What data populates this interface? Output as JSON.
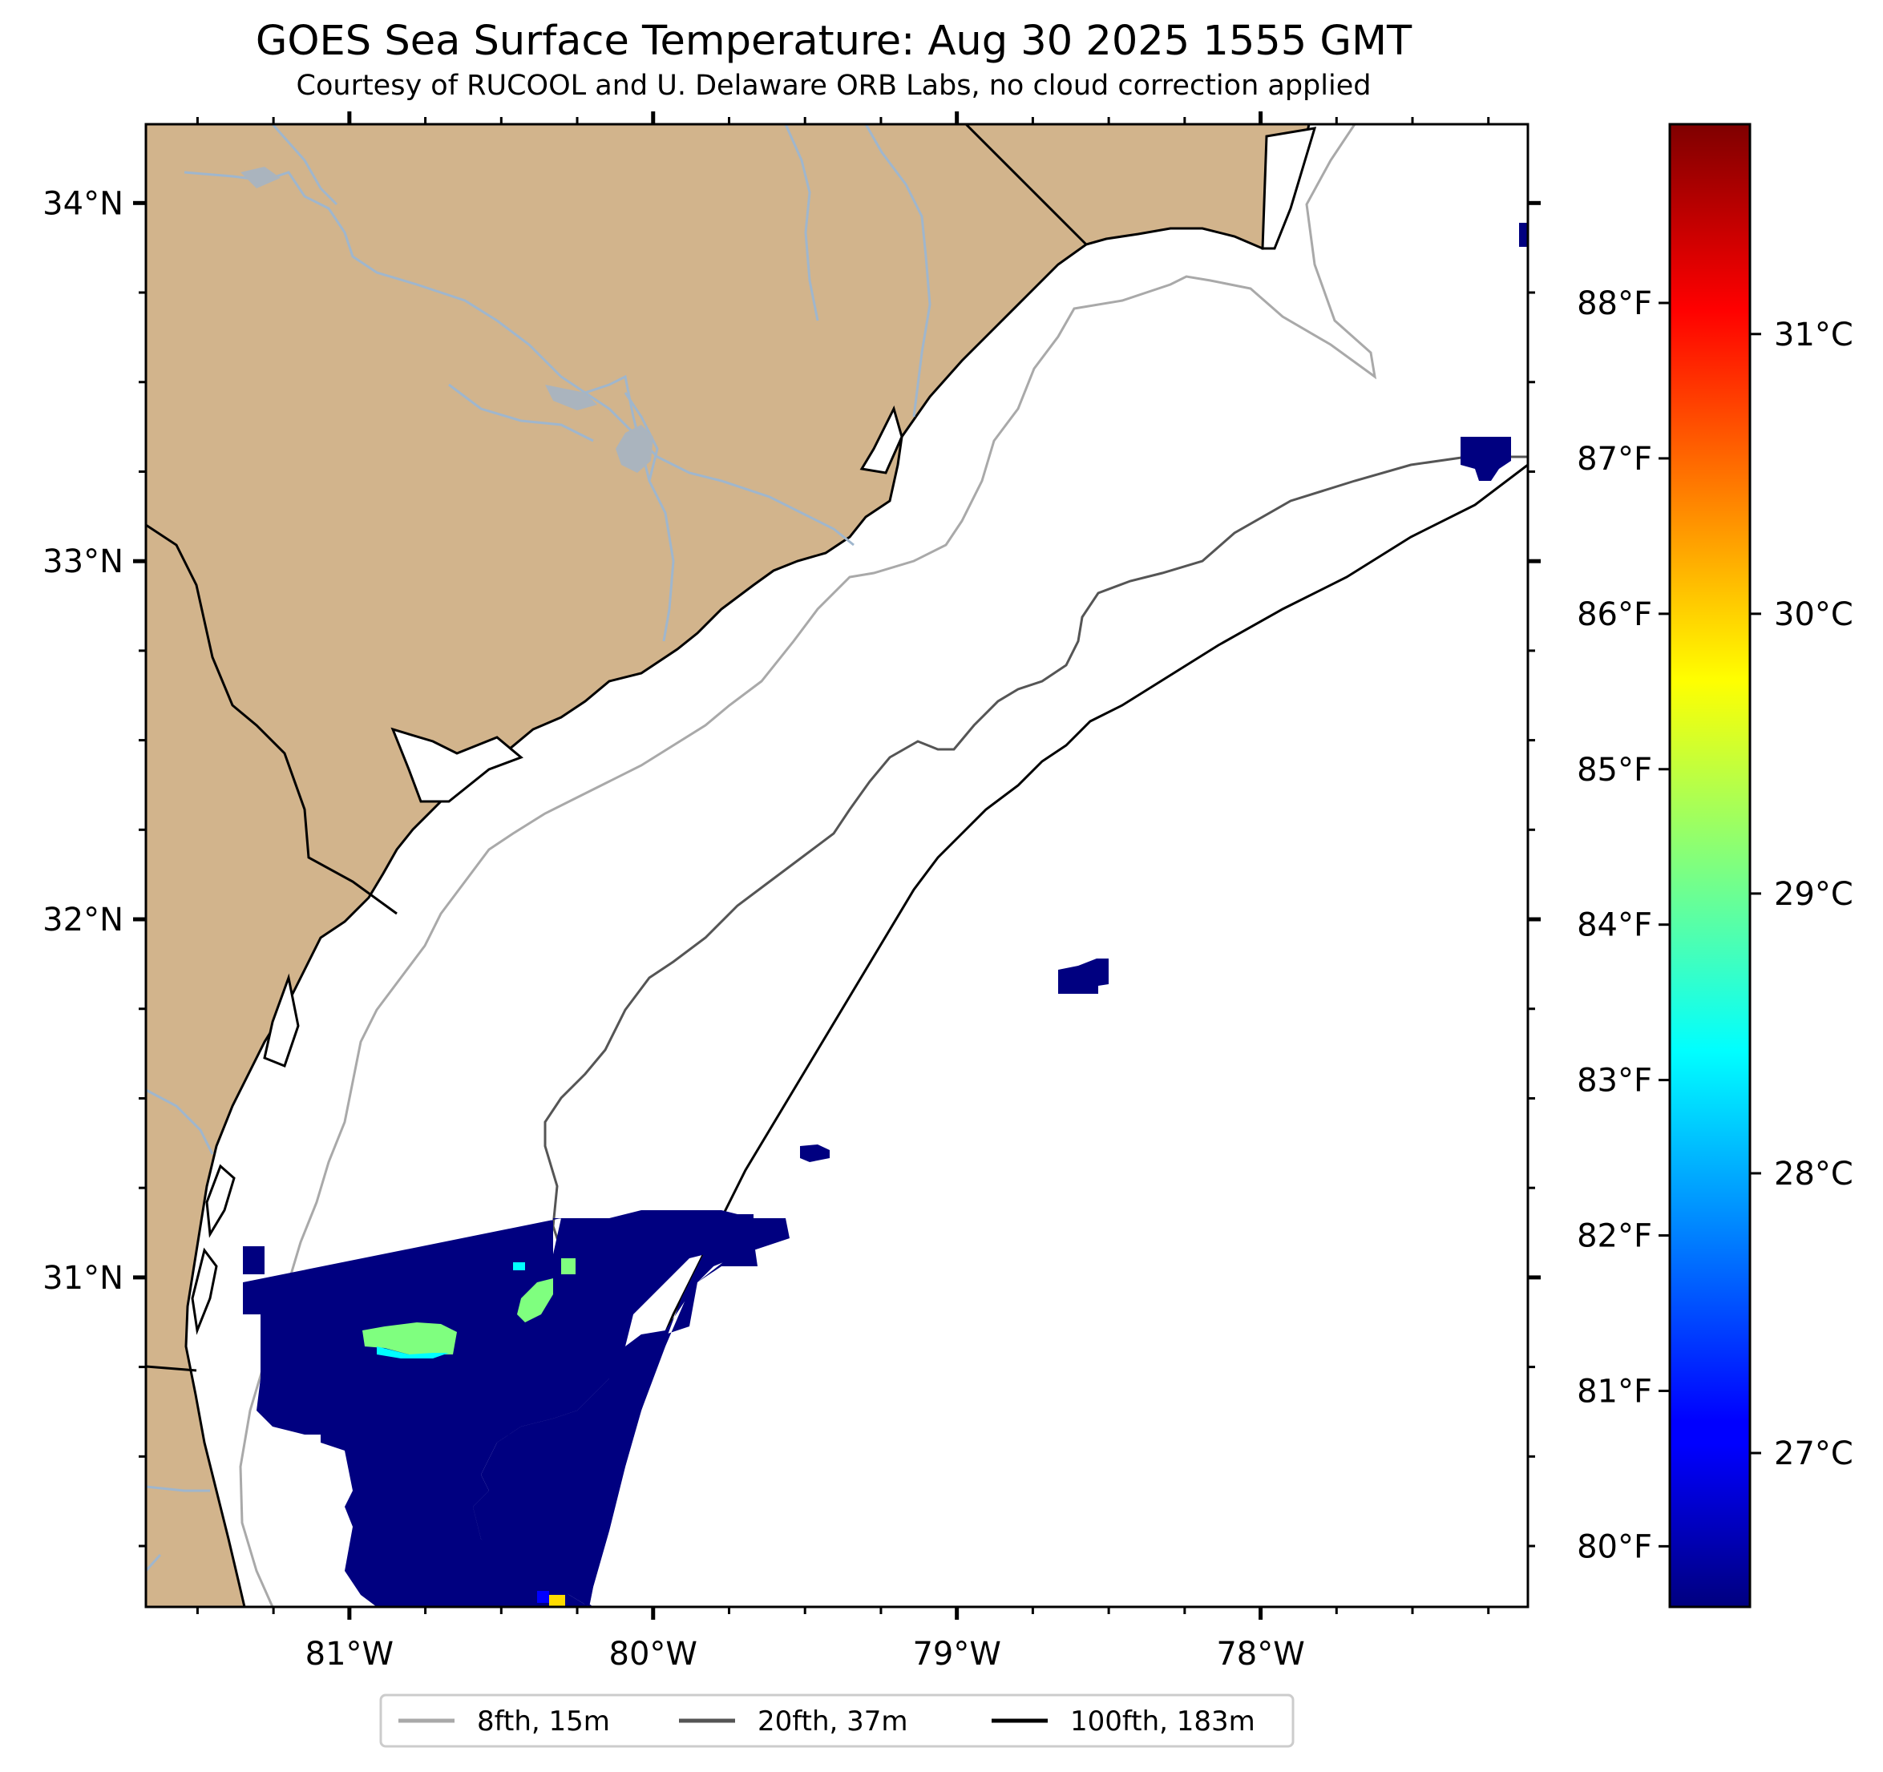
{
  "title": "GOES Sea Surface Temperature: Aug 30 2025 1555 GMT",
  "subtitle": "Courtesy of RUCOOL and U. Delaware ORB Labs, no cloud correction applied",
  "map": {
    "lon_range": [
      -81.67,
      -77.12
    ],
    "lat_range": [
      30.08,
      34.22
    ],
    "land_color": "#d2b48c",
    "water_color": "#ffffff",
    "river_color": "#9fb6cd",
    "lon_ticks": [
      {
        "lon": -81,
        "label": "81°W"
      },
      {
        "lon": -80,
        "label": "80°W"
      },
      {
        "lon": -79,
        "label": "79°W"
      },
      {
        "lon": -78,
        "label": "78°W"
      }
    ],
    "lat_ticks": [
      {
        "lat": 31,
        "label": "31°N"
      },
      {
        "lat": 32,
        "label": "32°N"
      },
      {
        "lat": 33,
        "label": "33°N"
      },
      {
        "lat": 34,
        "label": "34°N"
      }
    ]
  },
  "colorbar": {
    "colormap": "jet",
    "celsius_ticks": [
      {
        "value": 27,
        "label": "27°C"
      },
      {
        "value": 28,
        "label": "28°C"
      },
      {
        "value": 29,
        "label": "29°C"
      },
      {
        "value": 30,
        "label": "30°C"
      },
      {
        "value": 31,
        "label": "31°C"
      }
    ],
    "fahrenheit_ticks": [
      {
        "value": 80,
        "label": "80°F"
      },
      {
        "value": 81,
        "label": "81°F"
      },
      {
        "value": 82,
        "label": "82°F"
      },
      {
        "value": 83,
        "label": "83°F"
      },
      {
        "value": 84,
        "label": "84°F"
      },
      {
        "value": 85,
        "label": "85°F"
      },
      {
        "value": 86,
        "label": "86°F"
      },
      {
        "value": 87,
        "label": "87°F"
      },
      {
        "value": 88,
        "label": "88°F"
      }
    ]
  },
  "legend": {
    "items": [
      {
        "label": "8fth, 15m",
        "color": "#a9a9a9"
      },
      {
        "label": "20fth, 37m",
        "color": "#555555"
      },
      {
        "label": "100fth, 183m",
        "color": "#000000"
      }
    ]
  }
}
